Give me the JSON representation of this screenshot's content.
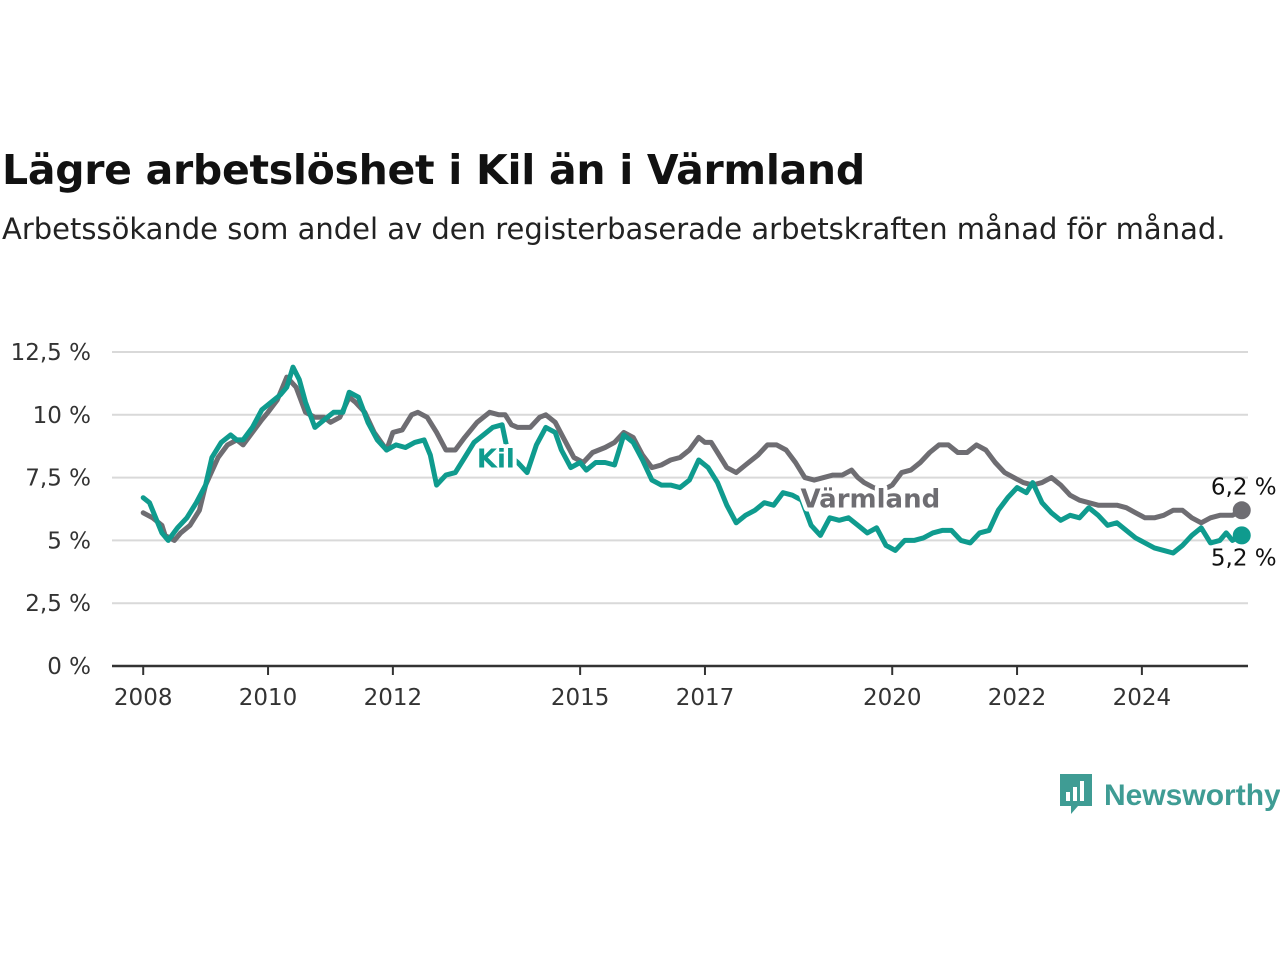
{
  "title": "Lägre arbetslöshet i Kil än i Värmland",
  "subtitle": "Arbetssökande som andel av den registerbaserade arbetskraften månad för månad.",
  "brand": {
    "name": "Newsworthy",
    "icon": "chart-bubble-icon",
    "color": "#3f9c94"
  },
  "chart_data": {
    "type": "line",
    "title": "Lägre arbetslöshet i Kil än i Värmland",
    "xlabel": "",
    "ylabel": "",
    "xlim": [
      2007.5,
      2025.7
    ],
    "ylim": [
      0,
      12.5
    ],
    "y_ticks": [
      0,
      2.5,
      5,
      7.5,
      10,
      12.5
    ],
    "y_tick_labels": [
      "0 %",
      "2,5 %",
      "5 %",
      "7,5 %",
      "10 %",
      "12,5 %"
    ],
    "x_ticks": [
      2008,
      2010,
      2012,
      2015,
      2017,
      2020,
      2022,
      2024
    ],
    "x_tick_labels": [
      "2008",
      "2010",
      "2012",
      "2015",
      "2017",
      "2020",
      "2022",
      "2024"
    ],
    "grid": true,
    "legend": "inline labels",
    "series": [
      {
        "name": "Värmland",
        "color": "#6e6d72",
        "end_label": "6,2 %",
        "points": [
          [
            2008.0,
            6.1
          ],
          [
            2008.15,
            5.9
          ],
          [
            2008.3,
            5.6
          ],
          [
            2008.35,
            5.2
          ],
          [
            2008.5,
            5.0
          ],
          [
            2008.6,
            5.3
          ],
          [
            2008.75,
            5.6
          ],
          [
            2008.9,
            6.2
          ],
          [
            2009.0,
            7.2
          ],
          [
            2009.2,
            8.3
          ],
          [
            2009.35,
            8.8
          ],
          [
            2009.5,
            9.0
          ],
          [
            2009.6,
            8.8
          ],
          [
            2009.75,
            9.3
          ],
          [
            2009.9,
            9.8
          ],
          [
            2010.0,
            10.1
          ],
          [
            2010.15,
            10.6
          ],
          [
            2010.3,
            11.5
          ],
          [
            2010.45,
            11.1
          ],
          [
            2010.6,
            10.1
          ],
          [
            2010.75,
            9.9
          ],
          [
            2010.9,
            9.9
          ],
          [
            2011.0,
            9.7
          ],
          [
            2011.15,
            9.9
          ],
          [
            2011.3,
            10.7
          ],
          [
            2011.4,
            10.5
          ],
          [
            2011.55,
            10.1
          ],
          [
            2011.7,
            9.3
          ],
          [
            2011.9,
            8.6
          ],
          [
            2012.0,
            9.3
          ],
          [
            2012.15,
            9.4
          ],
          [
            2012.3,
            10.0
          ],
          [
            2012.4,
            10.1
          ],
          [
            2012.55,
            9.9
          ],
          [
            2012.7,
            9.3
          ],
          [
            2012.85,
            8.6
          ],
          [
            2013.0,
            8.6
          ],
          [
            2013.15,
            9.1
          ],
          [
            2013.35,
            9.7
          ],
          [
            2013.55,
            10.1
          ],
          [
            2013.7,
            10.0
          ],
          [
            2013.8,
            10.0
          ],
          [
            2013.9,
            9.6
          ],
          [
            2014.0,
            9.5
          ],
          [
            2014.2,
            9.5
          ],
          [
            2014.35,
            9.9
          ],
          [
            2014.45,
            10.0
          ],
          [
            2014.6,
            9.7
          ],
          [
            2014.75,
            9.0
          ],
          [
            2014.9,
            8.3
          ],
          [
            2015.05,
            8.1
          ],
          [
            2015.2,
            8.5
          ],
          [
            2015.4,
            8.7
          ],
          [
            2015.55,
            8.9
          ],
          [
            2015.7,
            9.3
          ],
          [
            2015.85,
            9.1
          ],
          [
            2016.0,
            8.4
          ],
          [
            2016.15,
            7.9
          ],
          [
            2016.3,
            8.0
          ],
          [
            2016.45,
            8.2
          ],
          [
            2016.6,
            8.3
          ],
          [
            2016.75,
            8.6
          ],
          [
            2016.9,
            9.1
          ],
          [
            2017.0,
            8.9
          ],
          [
            2017.1,
            8.9
          ],
          [
            2017.2,
            8.5
          ],
          [
            2017.35,
            7.9
          ],
          [
            2017.5,
            7.7
          ],
          [
            2017.65,
            8.0
          ],
          [
            2017.85,
            8.4
          ],
          [
            2018.0,
            8.8
          ],
          [
            2018.15,
            8.8
          ],
          [
            2018.3,
            8.6
          ],
          [
            2018.45,
            8.1
          ],
          [
            2018.6,
            7.5
          ],
          [
            2018.75,
            7.4
          ],
          [
            2018.9,
            7.5
          ],
          [
            2019.05,
            7.6
          ],
          [
            2019.2,
            7.6
          ],
          [
            2019.35,
            7.8
          ],
          [
            2019.45,
            7.5
          ],
          [
            2019.55,
            7.3
          ],
          [
            2019.7,
            7.1
          ],
          [
            2019.85,
            7.0
          ],
          [
            2020.0,
            7.2
          ],
          [
            2020.15,
            7.7
          ],
          [
            2020.3,
            7.8
          ],
          [
            2020.45,
            8.1
          ],
          [
            2020.6,
            8.5
          ],
          [
            2020.75,
            8.8
          ],
          [
            2020.9,
            8.8
          ],
          [
            2021.05,
            8.5
          ],
          [
            2021.2,
            8.5
          ],
          [
            2021.35,
            8.8
          ],
          [
            2021.5,
            8.6
          ],
          [
            2021.65,
            8.1
          ],
          [
            2021.8,
            7.7
          ],
          [
            2021.95,
            7.5
          ],
          [
            2022.1,
            7.3
          ],
          [
            2022.25,
            7.2
          ],
          [
            2022.4,
            7.3
          ],
          [
            2022.55,
            7.5
          ],
          [
            2022.7,
            7.2
          ],
          [
            2022.85,
            6.8
          ],
          [
            2023.0,
            6.6
          ],
          [
            2023.15,
            6.5
          ],
          [
            2023.3,
            6.4
          ],
          [
            2023.45,
            6.4
          ],
          [
            2023.6,
            6.4
          ],
          [
            2023.75,
            6.3
          ],
          [
            2023.9,
            6.1
          ],
          [
            2024.05,
            5.9
          ],
          [
            2024.2,
            5.9
          ],
          [
            2024.35,
            6.0
          ],
          [
            2024.5,
            6.2
          ],
          [
            2024.65,
            6.2
          ],
          [
            2024.8,
            5.9
          ],
          [
            2024.95,
            5.7
          ],
          [
            2025.1,
            5.9
          ],
          [
            2025.25,
            6.0
          ],
          [
            2025.45,
            6.0
          ],
          [
            2025.6,
            6.2
          ]
        ]
      },
      {
        "name": "Kil",
        "color": "#0f9b8e",
        "end_label": "5,2 %",
        "points": [
          [
            2008.0,
            6.7
          ],
          [
            2008.1,
            6.5
          ],
          [
            2008.2,
            5.9
          ],
          [
            2008.3,
            5.3
          ],
          [
            2008.4,
            5.0
          ],
          [
            2008.55,
            5.5
          ],
          [
            2008.7,
            5.9
          ],
          [
            2008.85,
            6.5
          ],
          [
            2009.0,
            7.2
          ],
          [
            2009.1,
            8.3
          ],
          [
            2009.25,
            8.9
          ],
          [
            2009.4,
            9.2
          ],
          [
            2009.5,
            9.0
          ],
          [
            2009.6,
            9.0
          ],
          [
            2009.75,
            9.5
          ],
          [
            2009.9,
            10.2
          ],
          [
            2010.05,
            10.5
          ],
          [
            2010.2,
            10.8
          ],
          [
            2010.3,
            11.1
          ],
          [
            2010.4,
            11.9
          ],
          [
            2010.5,
            11.4
          ],
          [
            2010.6,
            10.5
          ],
          [
            2010.75,
            9.5
          ],
          [
            2010.9,
            9.8
          ],
          [
            2011.05,
            10.1
          ],
          [
            2011.2,
            10.1
          ],
          [
            2011.3,
            10.9
          ],
          [
            2011.45,
            10.7
          ],
          [
            2011.6,
            9.7
          ],
          [
            2011.75,
            9.0
          ],
          [
            2011.9,
            8.6
          ],
          [
            2012.05,
            8.8
          ],
          [
            2012.2,
            8.7
          ],
          [
            2012.35,
            8.9
          ],
          [
            2012.5,
            9.0
          ],
          [
            2012.6,
            8.4
          ],
          [
            2012.7,
            7.2
          ],
          [
            2012.85,
            7.6
          ],
          [
            2013.0,
            7.7
          ],
          [
            2013.15,
            8.3
          ],
          [
            2013.3,
            8.9
          ],
          [
            2013.45,
            9.2
          ],
          [
            2013.6,
            9.5
          ],
          [
            2013.75,
            9.6
          ],
          [
            2013.85,
            8.4
          ],
          [
            2014.0,
            8.1
          ],
          [
            2014.15,
            7.7
          ],
          [
            2014.3,
            8.8
          ],
          [
            2014.45,
            9.5
          ],
          [
            2014.6,
            9.3
          ],
          [
            2014.7,
            8.6
          ],
          [
            2014.85,
            7.9
          ],
          [
            2015.0,
            8.1
          ],
          [
            2015.1,
            7.8
          ],
          [
            2015.25,
            8.1
          ],
          [
            2015.4,
            8.1
          ],
          [
            2015.55,
            8.0
          ],
          [
            2015.7,
            9.2
          ],
          [
            2015.85,
            8.9
          ],
          [
            2016.0,
            8.2
          ],
          [
            2016.15,
            7.4
          ],
          [
            2016.3,
            7.2
          ],
          [
            2016.45,
            7.2
          ],
          [
            2016.6,
            7.1
          ],
          [
            2016.75,
            7.4
          ],
          [
            2016.9,
            8.2
          ],
          [
            2017.05,
            7.9
          ],
          [
            2017.2,
            7.3
          ],
          [
            2017.35,
            6.4
          ],
          [
            2017.5,
            5.7
          ],
          [
            2017.65,
            6.0
          ],
          [
            2017.8,
            6.2
          ],
          [
            2017.95,
            6.5
          ],
          [
            2018.1,
            6.4
          ],
          [
            2018.25,
            6.9
          ],
          [
            2018.4,
            6.8
          ],
          [
            2018.55,
            6.6
          ],
          [
            2018.7,
            5.6
          ],
          [
            2018.85,
            5.2
          ],
          [
            2019.0,
            5.9
          ],
          [
            2019.15,
            5.8
          ],
          [
            2019.3,
            5.9
          ],
          [
            2019.45,
            5.6
          ],
          [
            2019.6,
            5.3
          ],
          [
            2019.75,
            5.5
          ],
          [
            2019.9,
            4.8
          ],
          [
            2020.05,
            4.6
          ],
          [
            2020.2,
            5.0
          ],
          [
            2020.35,
            5.0
          ],
          [
            2020.5,
            5.1
          ],
          [
            2020.65,
            5.3
          ],
          [
            2020.8,
            5.4
          ],
          [
            2020.95,
            5.4
          ],
          [
            2021.1,
            5.0
          ],
          [
            2021.25,
            4.9
          ],
          [
            2021.4,
            5.3
          ],
          [
            2021.55,
            5.4
          ],
          [
            2021.7,
            6.2
          ],
          [
            2021.85,
            6.7
          ],
          [
            2022.0,
            7.1
          ],
          [
            2022.15,
            6.9
          ],
          [
            2022.25,
            7.3
          ],
          [
            2022.4,
            6.5
          ],
          [
            2022.55,
            6.1
          ],
          [
            2022.7,
            5.8
          ],
          [
            2022.85,
            6.0
          ],
          [
            2023.0,
            5.9
          ],
          [
            2023.15,
            6.3
          ],
          [
            2023.3,
            6.0
          ],
          [
            2023.45,
            5.6
          ],
          [
            2023.6,
            5.7
          ],
          [
            2023.75,
            5.4
          ],
          [
            2023.9,
            5.1
          ],
          [
            2024.05,
            4.9
          ],
          [
            2024.2,
            4.7
          ],
          [
            2024.35,
            4.6
          ],
          [
            2024.5,
            4.5
          ],
          [
            2024.65,
            4.8
          ],
          [
            2024.8,
            5.2
          ],
          [
            2024.95,
            5.5
          ],
          [
            2025.1,
            4.9
          ],
          [
            2025.25,
            5.0
          ],
          [
            2025.35,
            5.3
          ],
          [
            2025.45,
            5.0
          ],
          [
            2025.6,
            5.2
          ]
        ]
      }
    ]
  }
}
